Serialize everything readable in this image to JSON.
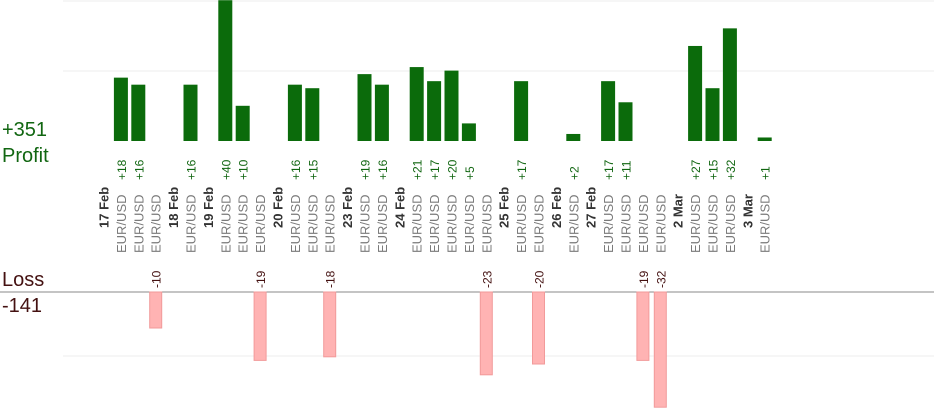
{
  "summary": {
    "profit_total": "+351",
    "profit_label": "Profit",
    "loss_label": "Loss",
    "loss_total": "-141"
  },
  "colors": {
    "profit_bar": "#0b6b0b",
    "profit_text": "#116611",
    "loss_bar": "#ffb3b3",
    "loss_text": "#441111",
    "grid": "#eeeeee",
    "axis": "#888888",
    "category_text": "#7a7a7a",
    "date_text": "#333333"
  },
  "chart_data": {
    "type": "bar",
    "title": "",
    "xlabel": "",
    "ylabel": "",
    "profit_ylim": [
      0,
      40
    ],
    "loss_ylim": [
      -32,
      0
    ],
    "grid": true,
    "dates": [
      "17 Feb",
      "18 Feb",
      "19 Feb",
      "20 Feb",
      "23 Feb",
      "24 Feb",
      "25 Feb",
      "26 Feb",
      "27 Feb",
      "2 Mar",
      "3 Mar"
    ],
    "symbol": "EUR/USD",
    "trades": [
      {
        "date": "17 Feb",
        "profit": 18
      },
      {
        "date": "17 Feb",
        "profit": 16
      },
      {
        "date": "17 Feb",
        "loss": -10
      },
      {
        "date": "18 Feb",
        "profit": 16
      },
      {
        "date": "19 Feb",
        "profit": 40
      },
      {
        "date": "19 Feb",
        "profit": 10
      },
      {
        "date": "19 Feb",
        "loss": -19
      },
      {
        "date": "20 Feb",
        "profit": 16
      },
      {
        "date": "20 Feb",
        "profit": 15
      },
      {
        "date": "20 Feb",
        "loss": -18
      },
      {
        "date": "23 Feb",
        "profit": 19
      },
      {
        "date": "23 Feb",
        "profit": 16
      },
      {
        "date": "24 Feb",
        "profit": 21
      },
      {
        "date": "24 Feb",
        "profit": 17
      },
      {
        "date": "24 Feb",
        "profit": 20
      },
      {
        "date": "24 Feb",
        "profit": 5
      },
      {
        "date": "24 Feb",
        "loss": -23
      },
      {
        "date": "25 Feb",
        "profit": 17
      },
      {
        "date": "25 Feb",
        "loss": -20
      },
      {
        "date": "26 Feb",
        "profit": 2
      },
      {
        "date": "27 Feb",
        "profit": 17
      },
      {
        "date": "27 Feb",
        "profit": 11
      },
      {
        "date": "27 Feb",
        "loss": -19
      },
      {
        "date": "27 Feb",
        "loss": -32
      },
      {
        "date": "2 Mar",
        "profit": 27
      },
      {
        "date": "2 Mar",
        "profit": 15
      },
      {
        "date": "2 Mar",
        "profit": 32
      },
      {
        "date": "3 Mar",
        "profit": 1
      }
    ]
  }
}
